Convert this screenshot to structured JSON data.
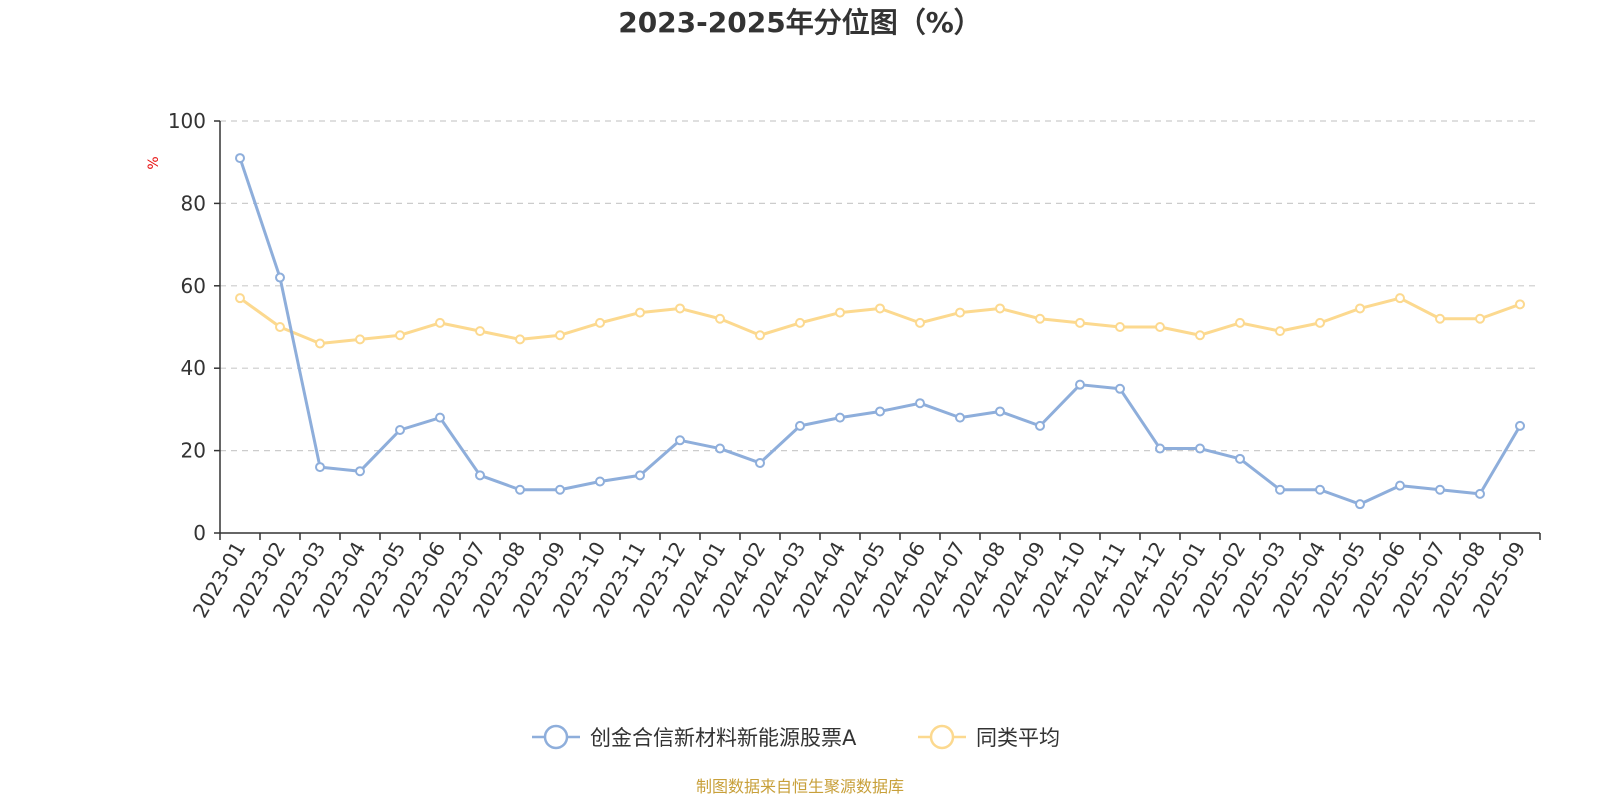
{
  "chart_data": {
    "type": "line",
    "title": "2023-2025年分位图（%）",
    "ylabel": "%",
    "ylim": [
      0,
      100
    ],
    "yticks": [
      0,
      20,
      40,
      60,
      80,
      100
    ],
    "grid": true,
    "legend_position": "bottom-center",
    "categories": [
      "2023-01",
      "2023-02",
      "2023-03",
      "2023-04",
      "2023-05",
      "2023-06",
      "2023-07",
      "2023-08",
      "2023-09",
      "2023-10",
      "2023-11",
      "2023-12",
      "2024-01",
      "2024-02",
      "2024-03",
      "2024-04",
      "2024-05",
      "2024-06",
      "2024-07",
      "2024-08",
      "2024-09",
      "2024-10",
      "2024-11",
      "2024-12",
      "2025-01",
      "2025-02",
      "2025-03",
      "2025-04",
      "2025-05",
      "2025-06",
      "2025-07",
      "2025-08",
      "2025-09"
    ],
    "series": [
      {
        "name": "创金合信新材料新能源股票A",
        "color": "#8eaedb",
        "values": [
          91,
          62,
          16,
          15,
          25,
          28,
          14,
          10.5,
          10.5,
          12.5,
          14,
          22.5,
          20.5,
          17,
          26,
          28,
          29.5,
          31.5,
          28,
          29.5,
          26,
          36,
          35,
          20.5,
          20.5,
          18,
          10.5,
          10.5,
          7,
          11.5,
          10.5,
          9.5,
          26
        ]
      },
      {
        "name": "同类平均",
        "color": "#fcd98f",
        "values": [
          57,
          50,
          46,
          47,
          48,
          51,
          49,
          47,
          48,
          51,
          53.5,
          54.5,
          52,
          48,
          51,
          53.5,
          54.5,
          51,
          53.5,
          54.5,
          52,
          51,
          50,
          50,
          48,
          51,
          49,
          51,
          54.5,
          57,
          52,
          52,
          55.5
        ]
      }
    ]
  },
  "source_note": "制图数据来自恒生聚源数据库",
  "colors": {
    "axis": "#333333",
    "grid": "#cccccc",
    "unit_label": "#e81010",
    "source_text": "#c8a03a"
  }
}
